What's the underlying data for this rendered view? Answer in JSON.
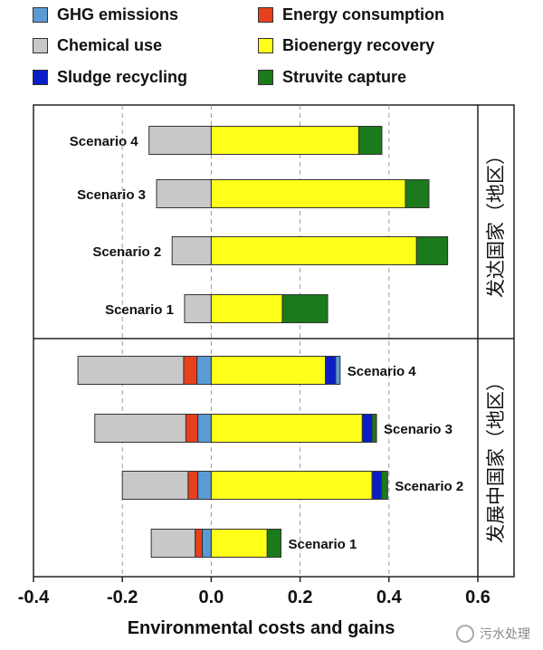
{
  "chart_data": {
    "type": "bar",
    "orientation": "horizontal-stacked",
    "xlabel": "Environmental costs and gains",
    "xlim": [
      -0.4,
      0.6
    ],
    "xticks": [
      "-0.4",
      "-0.2",
      "0.0",
      "0.2",
      "0.4",
      "0.6"
    ],
    "grid": "vertical dashed",
    "legend": [
      {
        "name": "GHG emissions",
        "color": "#5b9bd5"
      },
      {
        "name": "Energy consumption",
        "color": "#e8401c"
      },
      {
        "name": "Chemical use",
        "color": "#c8c8c8"
      },
      {
        "name": "Bioenergy recovery",
        "color": "#ffff1a"
      },
      {
        "name": "Sludge recycling",
        "color": "#0a1ec8"
      },
      {
        "name": "Struvite capture",
        "color": "#1b7a1b"
      }
    ],
    "panels": [
      {
        "side_label": "发达国家（地区）",
        "label_position": "left",
        "scenarios": [
          {
            "label": "Scenario 4",
            "segments": [
              {
                "series": "Chemical use",
                "from": -0.14,
                "to": 0.0
              },
              {
                "series": "Bioenergy recovery",
                "from": 0.0,
                "to": 0.332
              },
              {
                "series": "Struvite capture",
                "from": 0.332,
                "to": 0.384
              }
            ]
          },
          {
            "label": "Scenario 3",
            "segments": [
              {
                "series": "Chemical use",
                "from": -0.123,
                "to": 0.0
              },
              {
                "series": "Bioenergy recovery",
                "from": 0.0,
                "to": 0.437
              },
              {
                "series": "Struvite capture",
                "from": 0.437,
                "to": 0.49
              }
            ]
          },
          {
            "label": "Scenario 2",
            "segments": [
              {
                "series": "Chemical use",
                "from": -0.088,
                "to": 0.0
              },
              {
                "series": "Bioenergy recovery",
                "from": 0.0,
                "to": 0.462
              },
              {
                "series": "Struvite capture",
                "from": 0.462,
                "to": 0.532
              }
            ]
          },
          {
            "label": "Scenario 1",
            "segments": [
              {
                "series": "Chemical use",
                "from": -0.06,
                "to": 0.0
              },
              {
                "series": "Bioenergy recovery",
                "from": 0.0,
                "to": 0.16
              },
              {
                "series": "Struvite capture",
                "from": 0.16,
                "to": 0.262
              }
            ]
          }
        ]
      },
      {
        "side_label": "发展中国家（地区）",
        "label_position": "right",
        "scenarios": [
          {
            "label": "Scenario 4",
            "segments": [
              {
                "series": "Chemical use",
                "from": -0.3,
                "to": -0.062
              },
              {
                "series": "Energy consumption",
                "from": -0.062,
                "to": -0.032
              },
              {
                "series": "GHG emissions",
                "from": -0.032,
                "to": 0.0
              },
              {
                "series": "Bioenergy recovery",
                "from": 0.0,
                "to": 0.257
              },
              {
                "series": "Sludge recycling",
                "from": 0.257,
                "to": 0.28
              },
              {
                "series": "GHG emissions",
                "from": 0.28,
                "to": 0.29
              }
            ]
          },
          {
            "label": "Scenario 3",
            "segments": [
              {
                "series": "Chemical use",
                "from": -0.262,
                "to": -0.057
              },
              {
                "series": "Energy consumption",
                "from": -0.057,
                "to": -0.03
              },
              {
                "series": "GHG emissions",
                "from": -0.03,
                "to": 0.0
              },
              {
                "series": "Bioenergy recovery",
                "from": 0.0,
                "to": 0.34
              },
              {
                "series": "Sludge recycling",
                "from": 0.34,
                "to": 0.362
              },
              {
                "series": "Struvite capture",
                "from": 0.362,
                "to": 0.372
              }
            ]
          },
          {
            "label": "Scenario 2",
            "segments": [
              {
                "series": "Chemical use",
                "from": -0.2,
                "to": -0.052
              },
              {
                "series": "Energy consumption",
                "from": -0.052,
                "to": -0.03
              },
              {
                "series": "GHG emissions",
                "from": -0.03,
                "to": 0.0
              },
              {
                "series": "Bioenergy recovery",
                "from": 0.0,
                "to": 0.362
              },
              {
                "series": "Sludge recycling",
                "from": 0.362,
                "to": 0.383
              },
              {
                "series": "Struvite capture",
                "from": 0.383,
                "to": 0.397
              }
            ]
          },
          {
            "label": "Scenario 1",
            "segments": [
              {
                "series": "Chemical use",
                "from": -0.135,
                "to": -0.036
              },
              {
                "series": "Energy consumption",
                "from": -0.036,
                "to": -0.02
              },
              {
                "series": "GHG emissions",
                "from": -0.02,
                "to": 0.0
              },
              {
                "series": "Bioenergy recovery",
                "from": 0.0,
                "to": 0.126
              },
              {
                "series": "Struvite capture",
                "from": 0.126,
                "to": 0.157
              }
            ]
          }
        ]
      }
    ]
  },
  "watermark": {
    "text": "污水处理",
    "icon": "wechat-icon"
  }
}
